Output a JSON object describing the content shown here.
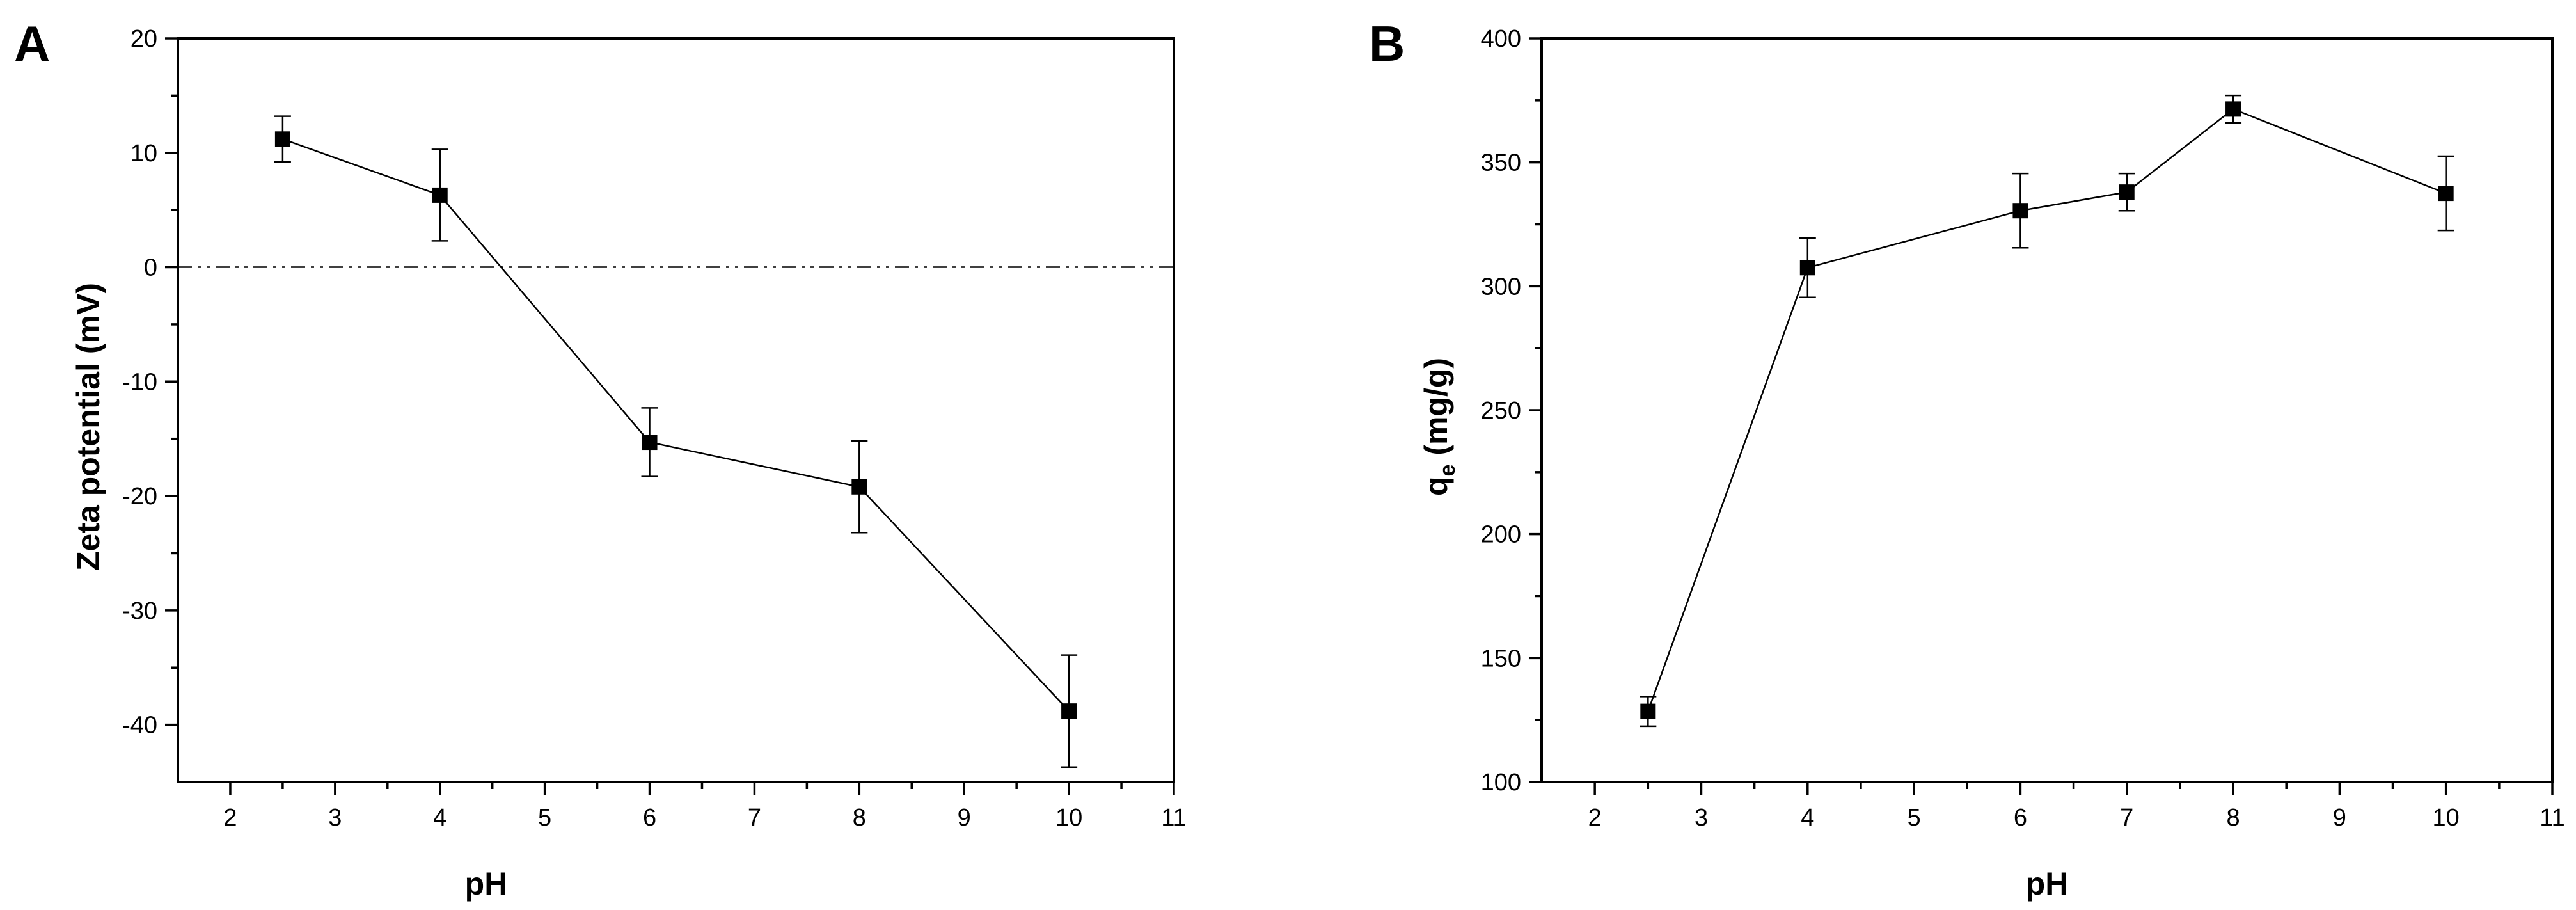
{
  "chart_data": [
    {
      "panel": "A",
      "type": "line",
      "xlabel": "pH",
      "ylabel": "Zeta potential (mV)",
      "xlim": [
        1.5,
        11
      ],
      "ylim": [
        -45,
        20
      ],
      "xticks": [
        2,
        3,
        4,
        5,
        6,
        7,
        8,
        9,
        10,
        11
      ],
      "yticks": [
        -40,
        -30,
        -20,
        -10,
        0,
        10,
        20
      ],
      "grid": false,
      "reference_line_y": 0,
      "series": [
        {
          "x": [
            2.5,
            4,
            6,
            8,
            10
          ],
          "y": [
            11.2,
            6.3,
            -15.3,
            -19.2,
            -38.8
          ],
          "error": [
            2.0,
            4.0,
            3.0,
            4.0,
            4.9
          ]
        }
      ]
    },
    {
      "panel": "B",
      "type": "line",
      "xlabel": "pH",
      "ylabel": "q",
      "ylabel_subscript": "e",
      "ylabel_unit": " (mg/g)",
      "xlim": [
        1.5,
        11
      ],
      "ylim": [
        100,
        400
      ],
      "xticks": [
        2,
        3,
        4,
        5,
        6,
        7,
        8,
        9,
        10,
        11
      ],
      "yticks": [
        100,
        150,
        200,
        250,
        300,
        350,
        400
      ],
      "grid": false,
      "series": [
        {
          "x": [
            2.5,
            4,
            6,
            7,
            8,
            10
          ],
          "y": [
            128.5,
            307.5,
            330.5,
            338.0,
            371.5,
            337.5
          ],
          "error": [
            6.0,
            12.0,
            15.0,
            7.5,
            5.5,
            15.0
          ]
        }
      ]
    }
  ]
}
